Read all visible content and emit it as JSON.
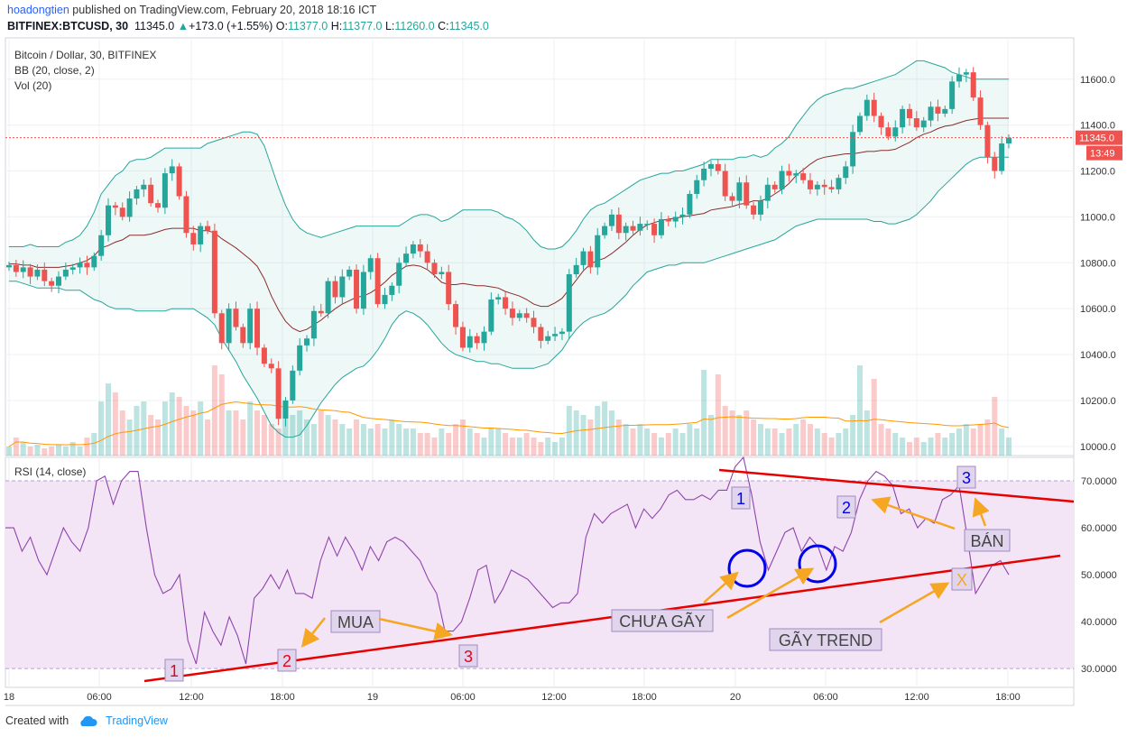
{
  "header": {
    "user": "hoadongtien",
    "published_text": " published on TradingView.com, February 20, 2018 18:16 ICT",
    "symbol": "BITFINEX:BTCUSD, 30",
    "last": "11345.0",
    "change": "+173.0 (+1.55%)",
    "o_label": "O:",
    "o": "11377.0",
    "h_label": "H:",
    "h": "11377.0",
    "l_label": "L:",
    "l": "11260.0",
    "c_label": "C:",
    "c": "11345.0"
  },
  "legend": {
    "title": "Bitcoin / Dollar, 30, BITFINEX",
    "bb": "BB (20, close, 2)",
    "vol": "Vol (20)",
    "rsi": "RSI (14, close)"
  },
  "footer": {
    "created_with": "Created with",
    "brand": "TradingView"
  },
  "colors": {
    "up": "#26a69a",
    "down": "#ef5350",
    "bb_band": "#26a69a",
    "bb_basis": "#8b2c2c",
    "rsi_line": "#8e44ad",
    "rsi_bg": "#f3e5f5",
    "trend_red": "#e60000",
    "arrow": "#f5a623",
    "circle": "#0000ee",
    "label_box": "#e1d5ee"
  },
  "chart_data": [
    {
      "type": "candlestick",
      "title": "Bitcoin / Dollar, 30, BITFINEX",
      "ylim": [
        9960,
        11780
      ],
      "y_ticks": [
        "11600.0",
        "11400.0",
        "11200.0",
        "11000.0",
        "10800.0",
        "10600.0",
        "10400.0",
        "10200.0",
        "10000.0"
      ],
      "y_tick_values": [
        11600,
        11400,
        11200,
        11000,
        10800,
        10600,
        10400,
        10200,
        10000
      ],
      "x_ticks": [
        "18",
        "06:00",
        "12:00",
        "18:00",
        "19",
        "06:00",
        "12:00",
        "18:00",
        "20",
        "06:00",
        "12:00",
        "18:00"
      ],
      "last_price": "11345.0",
      "countdown": "13:49",
      "close": [
        10790,
        10760,
        10780,
        10740,
        10770,
        10720,
        10700,
        10740,
        10770,
        10780,
        10800,
        10780,
        10830,
        10920,
        11050,
        11040,
        11000,
        11080,
        11120,
        11140,
        11060,
        11040,
        11190,
        11220,
        11090,
        10930,
        10880,
        10960,
        10940,
        10580,
        10450,
        10600,
        10520,
        10450,
        10600,
        10430,
        10360,
        10340,
        10120,
        10200,
        10330,
        10440,
        10470,
        10590,
        10580,
        10720,
        10650,
        10740,
        10770,
        10600,
        10760,
        10820,
        10620,
        10660,
        10700,
        10800,
        10840,
        10880,
        10850,
        10800,
        10750,
        10760,
        10620,
        10520,
        10430,
        10480,
        10450,
        10500,
        10640,
        10650,
        10600,
        10560,
        10580,
        10560,
        10520,
        10460,
        10480,
        10490,
        10500,
        10750,
        10790,
        10850,
        10780,
        10920,
        10960,
        11010,
        10930,
        10960,
        10940,
        10970,
        10970,
        10920,
        10990,
        10980,
        11000,
        11010,
        11100,
        11160,
        11210,
        11230,
        11200,
        11090,
        11070,
        11150,
        11050,
        11010,
        11070,
        11140,
        11120,
        11200,
        11180,
        11190,
        11160,
        11120,
        11140,
        11130,
        11120,
        11170,
        11220,
        11370,
        11440,
        11510,
        11440,
        11390,
        11350,
        11390,
        11470,
        11430,
        11390,
        11420,
        11480,
        11450,
        11470,
        11590,
        11620,
        11630,
        11520,
        11400,
        11260,
        11200,
        11320,
        11345
      ],
      "bb_upper": [
        10870,
        10870,
        10870,
        10880,
        10870,
        10870,
        10870,
        10870,
        10890,
        10900,
        10920,
        10960,
        11020,
        11100,
        11140,
        11180,
        11200,
        11240,
        11250,
        11250,
        11260,
        11280,
        11300,
        11300,
        11300,
        11300,
        11300,
        11300,
        11320,
        11330,
        11340,
        11350,
        11360,
        11370,
        11370,
        11360,
        11310,
        11220,
        11130,
        11050,
        10990,
        10950,
        10930,
        10920,
        10910,
        10920,
        10930,
        10940,
        10950,
        10960,
        10960,
        10960,
        10960,
        10960,
        10960,
        10960,
        10980,
        11000,
        11010,
        11010,
        11000,
        10980,
        10990,
        11010,
        11030,
        11030,
        11030,
        11030,
        11030,
        11020,
        11000,
        10990,
        10970,
        10940,
        10900,
        10870,
        10860,
        10860,
        10870,
        10900,
        10940,
        10990,
        11030,
        11050,
        11060,
        11080,
        11100,
        11120,
        11140,
        11160,
        11170,
        11180,
        11190,
        11190,
        11200,
        11200,
        11210,
        11220,
        11230,
        11250,
        11250,
        11250,
        11250,
        11260,
        11260,
        11270,
        11260,
        11270,
        11300,
        11320,
        11350,
        11400,
        11440,
        11480,
        11510,
        11530,
        11540,
        11550,
        11560,
        11560,
        11570,
        11580,
        11590,
        11600,
        11610,
        11620,
        11640,
        11660,
        11680,
        11680,
        11670,
        11660,
        11650,
        11630,
        11620,
        11610,
        11600,
        11600,
        11600,
        11600,
        11600,
        11600
      ],
      "bb_lower": [
        10720,
        10720,
        10710,
        10700,
        10690,
        10690,
        10690,
        10690,
        10680,
        10680,
        10680,
        10660,
        10640,
        10630,
        10610,
        10600,
        10600,
        10600,
        10590,
        10590,
        10590,
        10590,
        10590,
        10600,
        10600,
        10600,
        10600,
        10580,
        10560,
        10530,
        10470,
        10420,
        10370,
        10310,
        10260,
        10210,
        10150,
        10090,
        10060,
        10040,
        10040,
        10050,
        10090,
        10140,
        10190,
        10230,
        10270,
        10300,
        10320,
        10340,
        10350,
        10380,
        10420,
        10470,
        10530,
        10570,
        10590,
        10580,
        10560,
        10530,
        10490,
        10450,
        10420,
        10400,
        10390,
        10380,
        10370,
        10370,
        10360,
        10360,
        10350,
        10340,
        10340,
        10340,
        10340,
        10350,
        10360,
        10390,
        10420,
        10470,
        10510,
        10540,
        10560,
        10570,
        10580,
        10600,
        10630,
        10660,
        10700,
        10730,
        10760,
        10770,
        10780,
        10790,
        10790,
        10800,
        10800,
        10800,
        10800,
        10810,
        10820,
        10830,
        10840,
        10850,
        10860,
        10870,
        10880,
        10890,
        10900,
        10920,
        10940,
        10960,
        10970,
        10980,
        10990,
        10990,
        10990,
        10990,
        10990,
        10990,
        10990,
        10990,
        10980,
        10980,
        10970,
        10970,
        10980,
        10990,
        11010,
        11040,
        11070,
        11110,
        11140,
        11170,
        11200,
        11230,
        11250,
        11260,
        11260,
        11260,
        11260,
        11260
      ],
      "volume_relative": [
        0.1,
        0.2,
        0.15,
        0.1,
        0.12,
        0.08,
        0.1,
        0.12,
        0.1,
        0.15,
        0.1,
        0.2,
        0.25,
        0.6,
        0.8,
        0.7,
        0.5,
        0.4,
        0.55,
        0.6,
        0.45,
        0.4,
        0.6,
        0.7,
        0.65,
        0.55,
        0.5,
        0.6,
        0.4,
        1.0,
        0.9,
        0.5,
        0.5,
        0.4,
        0.6,
        0.5,
        0.45,
        0.35,
        0.3,
        0.4,
        0.45,
        0.5,
        0.4,
        0.35,
        0.5,
        0.45,
        0.4,
        0.35,
        0.3,
        0.4,
        0.35,
        0.3,
        0.35,
        0.3,
        0.4,
        0.35,
        0.3,
        0.3,
        0.25,
        0.25,
        0.2,
        0.3,
        0.25,
        0.35,
        0.4,
        0.3,
        0.25,
        0.2,
        0.3,
        0.3,
        0.25,
        0.2,
        0.2,
        0.25,
        0.2,
        0.15,
        0.2,
        0.15,
        0.2,
        0.55,
        0.5,
        0.45,
        0.4,
        0.55,
        0.6,
        0.5,
        0.4,
        0.35,
        0.3,
        0.35,
        0.3,
        0.25,
        0.2,
        0.25,
        0.3,
        0.25,
        0.35,
        0.3,
        0.95,
        0.45,
        0.9,
        0.55,
        0.5,
        0.45,
        0.5,
        0.4,
        0.35,
        0.3,
        0.3,
        0.25,
        0.3,
        0.35,
        0.4,
        0.35,
        0.3,
        0.25,
        0.2,
        0.25,
        0.3,
        0.45,
        1.0,
        0.5,
        0.85,
        0.35,
        0.3,
        0.25,
        0.2,
        0.15,
        0.2,
        0.15,
        0.2,
        0.25,
        0.2,
        0.25,
        0.3,
        0.35,
        0.3,
        0.35,
        0.4,
        0.65,
        0.3,
        0.2
      ]
    },
    {
      "type": "line",
      "title": "RSI (14, close)",
      "ylim": [
        26,
        75
      ],
      "y_ticks": [
        "70.0000",
        "60.0000",
        "50.0000",
        "40.0000",
        "30.0000"
      ],
      "y_tick_values": [
        70,
        60,
        50,
        40,
        30
      ],
      "values": [
        60,
        60,
        55,
        58,
        53,
        50,
        55,
        60,
        57,
        55,
        60,
        70,
        71,
        65,
        70,
        72,
        72,
        60,
        50,
        46,
        47,
        50,
        36,
        31,
        42,
        38,
        35,
        41,
        37,
        31,
        45,
        47,
        50,
        47,
        51,
        46,
        46,
        45,
        53,
        58,
        54,
        58,
        55,
        51,
        56,
        53,
        57,
        58,
        57,
        55,
        53,
        49,
        46,
        38,
        38,
        40,
        45,
        51,
        52,
        44,
        47,
        51,
        50,
        49,
        47,
        45,
        43,
        44,
        44,
        46,
        58,
        63,
        61,
        63,
        64,
        65,
        60,
        64,
        62,
        64,
        67,
        68,
        66,
        66,
        67,
        66,
        68,
        68,
        73,
        75,
        67,
        57,
        51,
        55,
        59,
        60,
        55,
        58,
        56,
        51,
        56,
        55,
        59,
        66,
        70,
        72,
        71,
        69,
        63,
        64,
        60,
        62,
        61,
        66,
        67,
        69,
        58,
        46,
        49,
        52,
        53,
        50
      ]
    }
  ],
  "annotations": {
    "rsi_labels": [
      {
        "text": "1",
        "color": "#e8001c"
      },
      {
        "text": "2",
        "color": "#e8001c"
      },
      {
        "text": "3",
        "color": "#e8001c"
      },
      {
        "text": "1",
        "color": "#0000ee"
      },
      {
        "text": "2",
        "color": "#0000ee"
      },
      {
        "text": "3",
        "color": "#0000ee"
      }
    ],
    "text_labels": [
      "MUA",
      "CHƯA GÃY",
      "GÃY TREND",
      "BÁN",
      "X"
    ]
  }
}
